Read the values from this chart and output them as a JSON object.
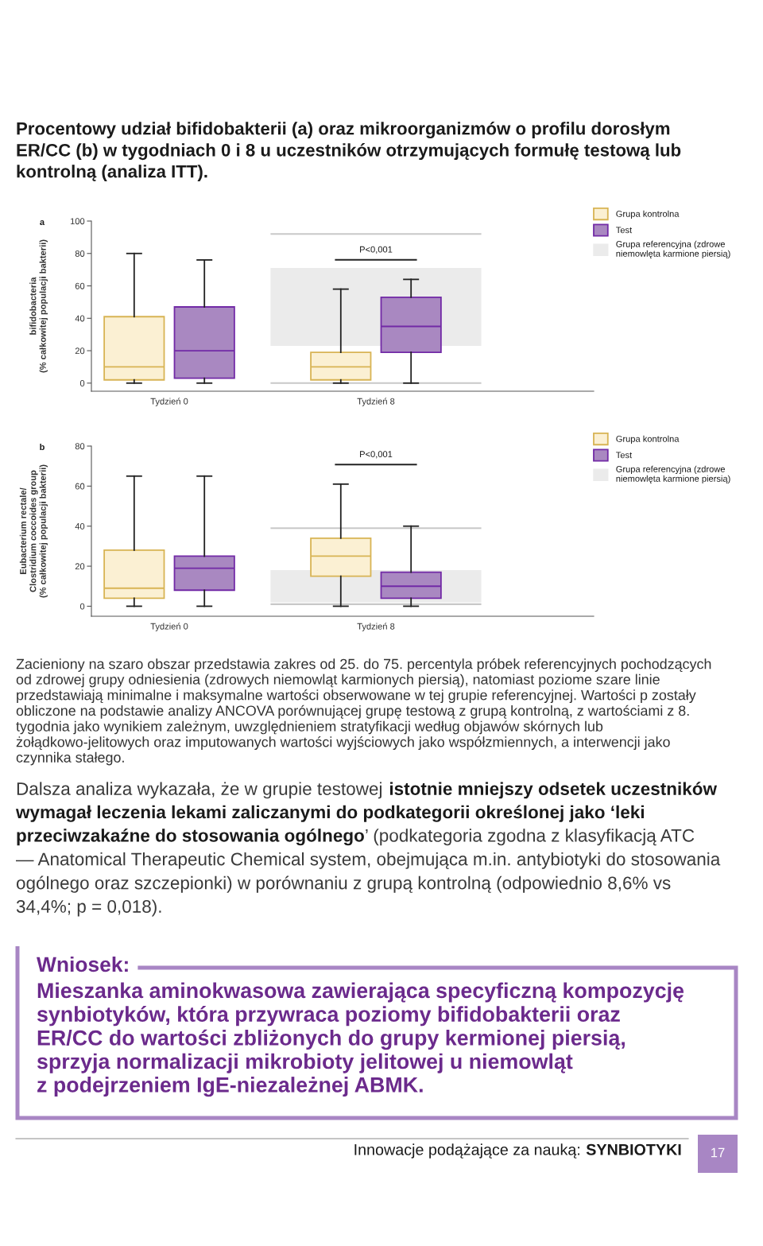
{
  "chart_data": [
    {
      "type": "box",
      "title": "Procentowy udział bifidobakterii (a) oraz mikroorganizmów o profilu dorosłym ER/CC (b) w tygodniach 0 i 8 u uczestników otrzymujących formułę testową lub kontrolną (analiza ITT).",
      "ylabel": "bifidobacteria\n(% całkowitej populacji bakterii)",
      "categories": [
        "Tydzień 0",
        "Tydzień 8"
      ],
      "series": [
        {
          "name": "Grupa kontrolna",
          "color": "#fbf0d3",
          "boxes": [
            {
              "low": 0,
              "q1": 2,
              "median": 10,
              "q3": 41,
              "high": 80
            },
            {
              "low": 0,
              "q1": 2,
              "median": 10,
              "q3": 19,
              "high": 58
            }
          ]
        },
        {
          "name": "Test",
          "color": "#a988c1",
          "boxes": [
            {
              "low": 0,
              "q1": 3,
              "median": 20,
              "q3": 47,
              "high": 76
            },
            {
              "low": 0,
              "q1": 19,
              "median": 35,
              "q3": 53,
              "high": 64
            }
          ]
        }
      ],
      "ylim": [
        -5,
        100
      ],
      "yticks": [
        0,
        20,
        40,
        60,
        80,
        100
      ],
      "bands": [
        {
          "axis": "y",
          "from": 23,
          "to": 71,
          "label": "Grupa referencyjna (zdrowe niemowlęta karmione piersią)",
          "color": "#ebebeb"
        }
      ],
      "ref_lines": [
        {
          "axis": "y",
          "value": 0,
          "color": "#c8c8c8"
        },
        {
          "axis": "y",
          "value": 92,
          "color": "#c8c8c8"
        }
      ],
      "legend": "top right",
      "annotations": [
        "a",
        "P<0,001"
      ]
    },
    {
      "type": "box",
      "ylabel": "Eubacterium rectale/\nClostridium coccoides group\n(% całkowitej populacji bakterii)",
      "categories": [
        "Tydzień 0",
        "Tydzień 8"
      ],
      "series": [
        {
          "name": "Grupa kontrolna",
          "color": "#fbf0d3",
          "boxes": [
            {
              "low": 0,
              "q1": 4,
              "median": 9,
              "q3": 28,
              "high": 65
            },
            {
              "low": 0,
              "q1": 15,
              "median": 25,
              "q3": 34,
              "high": 61
            }
          ]
        },
        {
          "name": "Test",
          "color": "#a988c1",
          "boxes": [
            {
              "low": 0,
              "q1": 8,
              "median": 19,
              "q3": 25,
              "high": 65
            },
            {
              "low": 0,
              "q1": 4,
              "median": 10,
              "q3": 17,
              "high": 40
            }
          ]
        }
      ],
      "ylim": [
        -5,
        80
      ],
      "yticks": [
        0,
        20,
        40,
        60,
        80
      ],
      "bands": [
        {
          "axis": "y",
          "from": 2,
          "to": 18,
          "label": "Grupa referencyjna (zdrowe niemowlęta karmione piersią)",
          "color": "#ebebeb"
        }
      ],
      "ref_lines": [
        {
          "axis": "y",
          "value": 1,
          "color": "#c8c8c8"
        },
        {
          "axis": "y",
          "value": 39,
          "color": "#c8c8c8"
        }
      ],
      "legend": "top right",
      "annotations": [
        "b",
        "P<0,001",
        "Zacieniony na szaro obszar przedstawia zakres od 25. do 75. percentyla próbek referencyjnych pochodzących od zdrowej grupy odniesienia (zdrowych niemowląt karmionych piersią), natomiast poziome szare linie przedstawiają minimalne i maksymalne wartości obserwowane w tej grupie referencyjnej. Wartości p zostały obliczone na podstawie analizy ANCOVA porównującej grupę testową z grupą kontrolną, z wartościami z 8. tygodnia jako wynikiem zależnym, uwzględnieniem stratyfikacji według objawów skórnych lub żołądkowo-jelitowych oraz imputowanych wartości wyjściowych jako współzmiennych, a interwencji jako czynnika stałego."
      ]
    },
    {
      "type": "other",
      "title": "Wniosek:",
      "annotations": [
        "Dalsza analiza wykazała, że w grupie testowej ",
        "istotnie mniejszy odsetek uczestników ",
        "wymagał leczenia lekami zaliczanymi do podkategorii określonej jako ‘leki ",
        "przeciwzakaźne do stosowania ogólnego",
        "’ (podkategoria zgodna z klasyfikacją ATC ",
        "— Anatomical Therapeutic Chemical system, obejmująca m.in. antybiotyki do stosowania ogólnego oraz szczepionki) w porównaniu z grupą kontrolną (odpowiednio 8,6% vs 34,4%; p = 0,018).",
        "Mieszanka aminokwasowa zawierająca specyficzną kompozycję synbiotyków, która przywraca poziomy bifidobakterii oraz ER/CC do wartości zbliżonych do grupy kermionej piersią, sprzyja normalizacji mikrobioty jelitowej u niemowląt z podejrzeniem IgE-niezależnej ABMK.",
        "Innowacje podążające za nauką: ",
        "SYNBIOTYKI",
        "17"
      ]
    }
  ]
}
